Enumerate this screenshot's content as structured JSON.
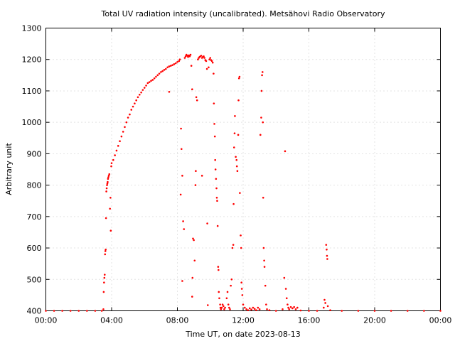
{
  "chart_data": {
    "type": "scatter",
    "title": "Total UV radiation intensity (uncalibrated). Metsähovi Radio Observatory",
    "xlabel": "Time UT, on date 2023-08-13",
    "ylabel": "Arbitrary unit",
    "xlim": [
      0,
      24
    ],
    "ylim": [
      400,
      1300
    ],
    "xticks": [
      {
        "value": 0,
        "label": "00:00"
      },
      {
        "value": 4,
        "label": "04:00"
      },
      {
        "value": 8,
        "label": "08:00"
      },
      {
        "value": 12,
        "label": "12:00"
      },
      {
        "value": 16,
        "label": "16:00"
      },
      {
        "value": 20,
        "label": "20:00"
      },
      {
        "value": 24,
        "label": "00:00"
      }
    ],
    "yticks": [
      400,
      500,
      600,
      700,
      800,
      900,
      1000,
      1100,
      1200,
      1300
    ],
    "grid": true,
    "color": "#ff0000",
    "series": [
      {
        "points": [
          [
            0.0,
            400
          ],
          [
            0.5,
            400
          ],
          [
            1.0,
            400
          ],
          [
            1.5,
            400
          ],
          [
            2.0,
            400
          ],
          [
            2.5,
            400
          ],
          [
            3.0,
            400
          ],
          [
            3.4,
            400
          ],
          [
            3.5,
            405
          ],
          [
            3.52,
            460
          ],
          [
            3.54,
            490
          ],
          [
            3.56,
            505
          ],
          [
            3.58,
            515
          ],
          [
            3.6,
            580
          ],
          [
            3.62,
            590
          ],
          [
            3.64,
            595
          ],
          [
            3.66,
            695
          ],
          [
            3.68,
            780
          ],
          [
            3.7,
            790
          ],
          [
            3.72,
            800
          ],
          [
            3.74,
            805
          ],
          [
            3.76,
            810
          ],
          [
            3.78,
            820
          ],
          [
            3.8,
            825
          ],
          [
            3.83,
            830
          ],
          [
            3.86,
            835
          ],
          [
            3.9,
            725
          ],
          [
            3.93,
            760
          ],
          [
            3.95,
            655
          ],
          [
            3.98,
            860
          ],
          [
            4.0,
            870
          ],
          [
            4.1,
            880
          ],
          [
            4.2,
            895
          ],
          [
            4.3,
            910
          ],
          [
            4.4,
            925
          ],
          [
            4.5,
            940
          ],
          [
            4.6,
            955
          ],
          [
            4.7,
            970
          ],
          [
            4.8,
            985
          ],
          [
            4.9,
            1000
          ],
          [
            5.0,
            1015
          ],
          [
            5.1,
            1025
          ],
          [
            5.2,
            1040
          ],
          [
            5.3,
            1050
          ],
          [
            5.4,
            1060
          ],
          [
            5.5,
            1070
          ],
          [
            5.6,
            1080
          ],
          [
            5.7,
            1088
          ],
          [
            5.8,
            1095
          ],
          [
            5.9,
            1103
          ],
          [
            6.0,
            1110
          ],
          [
            6.1,
            1117
          ],
          [
            6.2,
            1125
          ],
          [
            6.3,
            1128
          ],
          [
            6.4,
            1132
          ],
          [
            6.5,
            1135
          ],
          [
            6.6,
            1140
          ],
          [
            6.7,
            1145
          ],
          [
            6.8,
            1150
          ],
          [
            6.9,
            1155
          ],
          [
            7.0,
            1160
          ],
          [
            7.1,
            1163
          ],
          [
            7.2,
            1167
          ],
          [
            7.3,
            1170
          ],
          [
            7.4,
            1175
          ],
          [
            7.5,
            1097
          ],
          [
            7.5,
            1178
          ],
          [
            7.6,
            1180
          ],
          [
            7.7,
            1182
          ],
          [
            7.8,
            1185
          ],
          [
            7.9,
            1188
          ],
          [
            8.0,
            1192
          ],
          [
            8.1,
            1195
          ],
          [
            8.15,
            1200
          ],
          [
            8.2,
            770
          ],
          [
            8.22,
            980
          ],
          [
            8.25,
            915
          ],
          [
            8.3,
            830
          ],
          [
            8.35,
            685
          ],
          [
            8.4,
            660
          ],
          [
            8.3,
            495
          ],
          [
            8.45,
            1205
          ],
          [
            8.5,
            1210
          ],
          [
            8.55,
            1215
          ],
          [
            8.6,
            1212
          ],
          [
            8.65,
            1208
          ],
          [
            8.7,
            1213
          ],
          [
            8.75,
            1210
          ],
          [
            8.8,
            1215
          ],
          [
            8.85,
            1180
          ],
          [
            8.9,
            1105
          ],
          [
            8.9,
            445
          ],
          [
            8.92,
            505
          ],
          [
            8.95,
            630
          ],
          [
            9.0,
            625
          ],
          [
            9.05,
            560
          ],
          [
            9.1,
            800
          ],
          [
            9.12,
            845
          ],
          [
            9.15,
            1080
          ],
          [
            9.2,
            1070
          ],
          [
            9.25,
            1200
          ],
          [
            9.3,
            1205
          ],
          [
            9.35,
            1208
          ],
          [
            9.4,
            1210
          ],
          [
            9.45,
            1212
          ],
          [
            9.5,
            830
          ],
          [
            9.5,
            1205
          ],
          [
            9.55,
            1208
          ],
          [
            9.6,
            1210
          ],
          [
            9.65,
            1205
          ],
          [
            9.7,
            1198
          ],
          [
            9.75,
            1195
          ],
          [
            9.8,
            1170
          ],
          [
            9.82,
            678
          ],
          [
            9.85,
            418
          ],
          [
            9.9,
            1175
          ],
          [
            9.95,
            1200
          ],
          [
            10.0,
            1205
          ],
          [
            10.05,
            1198
          ],
          [
            10.1,
            1195
          ],
          [
            10.15,
            1190
          ],
          [
            10.2,
            1155
          ],
          [
            10.22,
            1060
          ],
          [
            10.25,
            995
          ],
          [
            10.28,
            955
          ],
          [
            10.3,
            880
          ],
          [
            10.32,
            850
          ],
          [
            10.35,
            820
          ],
          [
            10.38,
            790
          ],
          [
            10.4,
            760
          ],
          [
            10.42,
            750
          ],
          [
            10.45,
            670
          ],
          [
            10.48,
            540
          ],
          [
            10.5,
            530
          ],
          [
            10.52,
            460
          ],
          [
            10.55,
            440
          ],
          [
            10.6,
            420
          ],
          [
            10.62,
            410
          ],
          [
            10.65,
            405
          ],
          [
            10.7,
            410
          ],
          [
            10.75,
            420
          ],
          [
            10.8,
            415
          ],
          [
            10.85,
            405
          ],
          [
            10.9,
            410
          ],
          [
            11.0,
            440
          ],
          [
            11.05,
            460
          ],
          [
            11.1,
            420
          ],
          [
            11.15,
            410
          ],
          [
            11.2,
            405
          ],
          [
            11.25,
            480
          ],
          [
            11.3,
            500
          ],
          [
            11.35,
            600
          ],
          [
            11.4,
            610
          ],
          [
            11.42,
            740
          ],
          [
            11.45,
            920
          ],
          [
            11.48,
            965
          ],
          [
            11.5,
            1020
          ],
          [
            11.55,
            890
          ],
          [
            11.6,
            880
          ],
          [
            11.62,
            860
          ],
          [
            11.65,
            845
          ],
          [
            11.7,
            960
          ],
          [
            11.72,
            1070
          ],
          [
            11.75,
            1140
          ],
          [
            11.78,
            1145
          ],
          [
            11.8,
            775
          ],
          [
            11.85,
            640
          ],
          [
            11.88,
            600
          ],
          [
            11.9,
            490
          ],
          [
            11.92,
            470
          ],
          [
            11.95,
            450
          ],
          [
            12.0,
            420
          ],
          [
            12.1,
            410
          ],
          [
            12.2,
            405
          ],
          [
            12.3,
            402
          ],
          [
            12.4,
            408
          ],
          [
            12.5,
            404
          ],
          [
            12.6,
            410
          ],
          [
            12.7,
            406
          ],
          [
            12.8,
            402
          ],
          [
            12.9,
            410
          ],
          [
            13.0,
            405
          ],
          [
            13.05,
            960
          ],
          [
            13.1,
            1015
          ],
          [
            13.12,
            1100
          ],
          [
            13.15,
            1150
          ],
          [
            13.18,
            1160
          ],
          [
            13.2,
            1000
          ],
          [
            13.22,
            760
          ],
          [
            13.25,
            600
          ],
          [
            13.28,
            560
          ],
          [
            13.3,
            540
          ],
          [
            13.35,
            480
          ],
          [
            13.4,
            420
          ],
          [
            13.45,
            405
          ],
          [
            13.6,
            402
          ],
          [
            14.0,
            400
          ],
          [
            14.4,
            405
          ],
          [
            14.5,
            505
          ],
          [
            14.55,
            908
          ],
          [
            14.6,
            470
          ],
          [
            14.65,
            440
          ],
          [
            14.7,
            420
          ],
          [
            14.75,
            410
          ],
          [
            14.8,
            405
          ],
          [
            14.9,
            412
          ],
          [
            15.0,
            408
          ],
          [
            15.1,
            412
          ],
          [
            15.2,
            405
          ],
          [
            15.3,
            410
          ],
          [
            15.5,
            401
          ],
          [
            16.0,
            400
          ],
          [
            16.5,
            400
          ],
          [
            16.9,
            410
          ],
          [
            16.95,
            435
          ],
          [
            17.0,
            425
          ],
          [
            17.05,
            610
          ],
          [
            17.08,
            595
          ],
          [
            17.1,
            575
          ],
          [
            17.12,
            565
          ],
          [
            17.15,
            415
          ],
          [
            17.3,
            402
          ],
          [
            18.0,
            400
          ],
          [
            19.0,
            400
          ],
          [
            20.0,
            400
          ],
          [
            21.0,
            400
          ],
          [
            22.0,
            400
          ],
          [
            23.0,
            400
          ],
          [
            24.0,
            400
          ]
        ]
      }
    ]
  }
}
